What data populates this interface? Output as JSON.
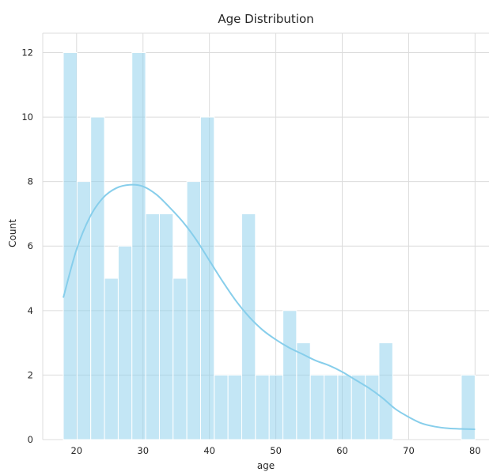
{
  "chart_data": {
    "type": "bar",
    "title": "Age Distribution",
    "xlabel": "age",
    "ylabel": "Count",
    "xlim": [
      14.9,
      82.1
    ],
    "ylim": [
      0,
      12.6
    ],
    "xticks": [
      20,
      30,
      40,
      50,
      60,
      70,
      80
    ],
    "yticks": [
      0,
      2,
      4,
      6,
      8,
      10,
      12
    ],
    "grid": true,
    "bar_color": "#87ceeb",
    "bar_opacity": 0.5,
    "kde_color": "#87ceeb",
    "bins": [
      {
        "x0": 18.0,
        "x1": 20.07,
        "count": 12
      },
      {
        "x0": 20.07,
        "x1": 22.13,
        "count": 8
      },
      {
        "x0": 22.13,
        "x1": 24.2,
        "count": 10
      },
      {
        "x0": 24.2,
        "x1": 26.27,
        "count": 5
      },
      {
        "x0": 26.27,
        "x1": 28.33,
        "count": 6
      },
      {
        "x0": 28.33,
        "x1": 30.4,
        "count": 12
      },
      {
        "x0": 30.4,
        "x1": 32.47,
        "count": 7
      },
      {
        "x0": 32.47,
        "x1": 34.53,
        "count": 7
      },
      {
        "x0": 34.53,
        "x1": 36.6,
        "count": 5
      },
      {
        "x0": 36.6,
        "x1": 38.67,
        "count": 8
      },
      {
        "x0": 38.67,
        "x1": 40.73,
        "count": 10
      },
      {
        "x0": 40.73,
        "x1": 42.8,
        "count": 2
      },
      {
        "x0": 42.8,
        "x1": 44.87,
        "count": 2
      },
      {
        "x0": 44.87,
        "x1": 46.93,
        "count": 7
      },
      {
        "x0": 46.93,
        "x1": 49.0,
        "count": 2
      },
      {
        "x0": 49.0,
        "x1": 51.07,
        "count": 2
      },
      {
        "x0": 51.07,
        "x1": 53.13,
        "count": 4
      },
      {
        "x0": 53.13,
        "x1": 55.2,
        "count": 3
      },
      {
        "x0": 55.2,
        "x1": 57.27,
        "count": 2
      },
      {
        "x0": 57.27,
        "x1": 59.33,
        "count": 2
      },
      {
        "x0": 59.33,
        "x1": 61.4,
        "count": 2
      },
      {
        "x0": 61.4,
        "x1": 63.47,
        "count": 2
      },
      {
        "x0": 63.47,
        "x1": 65.53,
        "count": 2
      },
      {
        "x0": 65.53,
        "x1": 67.6,
        "count": 3
      },
      {
        "x0": 67.6,
        "x1": 69.67,
        "count": 0
      },
      {
        "x0": 69.67,
        "x1": 71.73,
        "count": 0
      },
      {
        "x0": 71.73,
        "x1": 73.8,
        "count": 0
      },
      {
        "x0": 73.8,
        "x1": 75.87,
        "count": 0
      },
      {
        "x0": 75.87,
        "x1": 77.93,
        "count": 0
      },
      {
        "x0": 77.93,
        "x1": 80.0,
        "count": 2
      }
    ],
    "kde": {
      "x": [
        18,
        20,
        22,
        24,
        26,
        28,
        30,
        32,
        34,
        36,
        38,
        40,
        42,
        44,
        46,
        48,
        50,
        52,
        54,
        56,
        58,
        60,
        62,
        64,
        66,
        68,
        70,
        72,
        74,
        76,
        78,
        80
      ],
      "y": [
        4.4,
        5.9,
        6.9,
        7.5,
        7.8,
        7.9,
        7.85,
        7.6,
        7.2,
        6.75,
        6.2,
        5.55,
        4.9,
        4.3,
        3.8,
        3.4,
        3.1,
        2.85,
        2.65,
        2.45,
        2.3,
        2.1,
        1.85,
        1.6,
        1.3,
        0.95,
        0.7,
        0.5,
        0.4,
        0.35,
        0.33,
        0.32
      ]
    }
  }
}
